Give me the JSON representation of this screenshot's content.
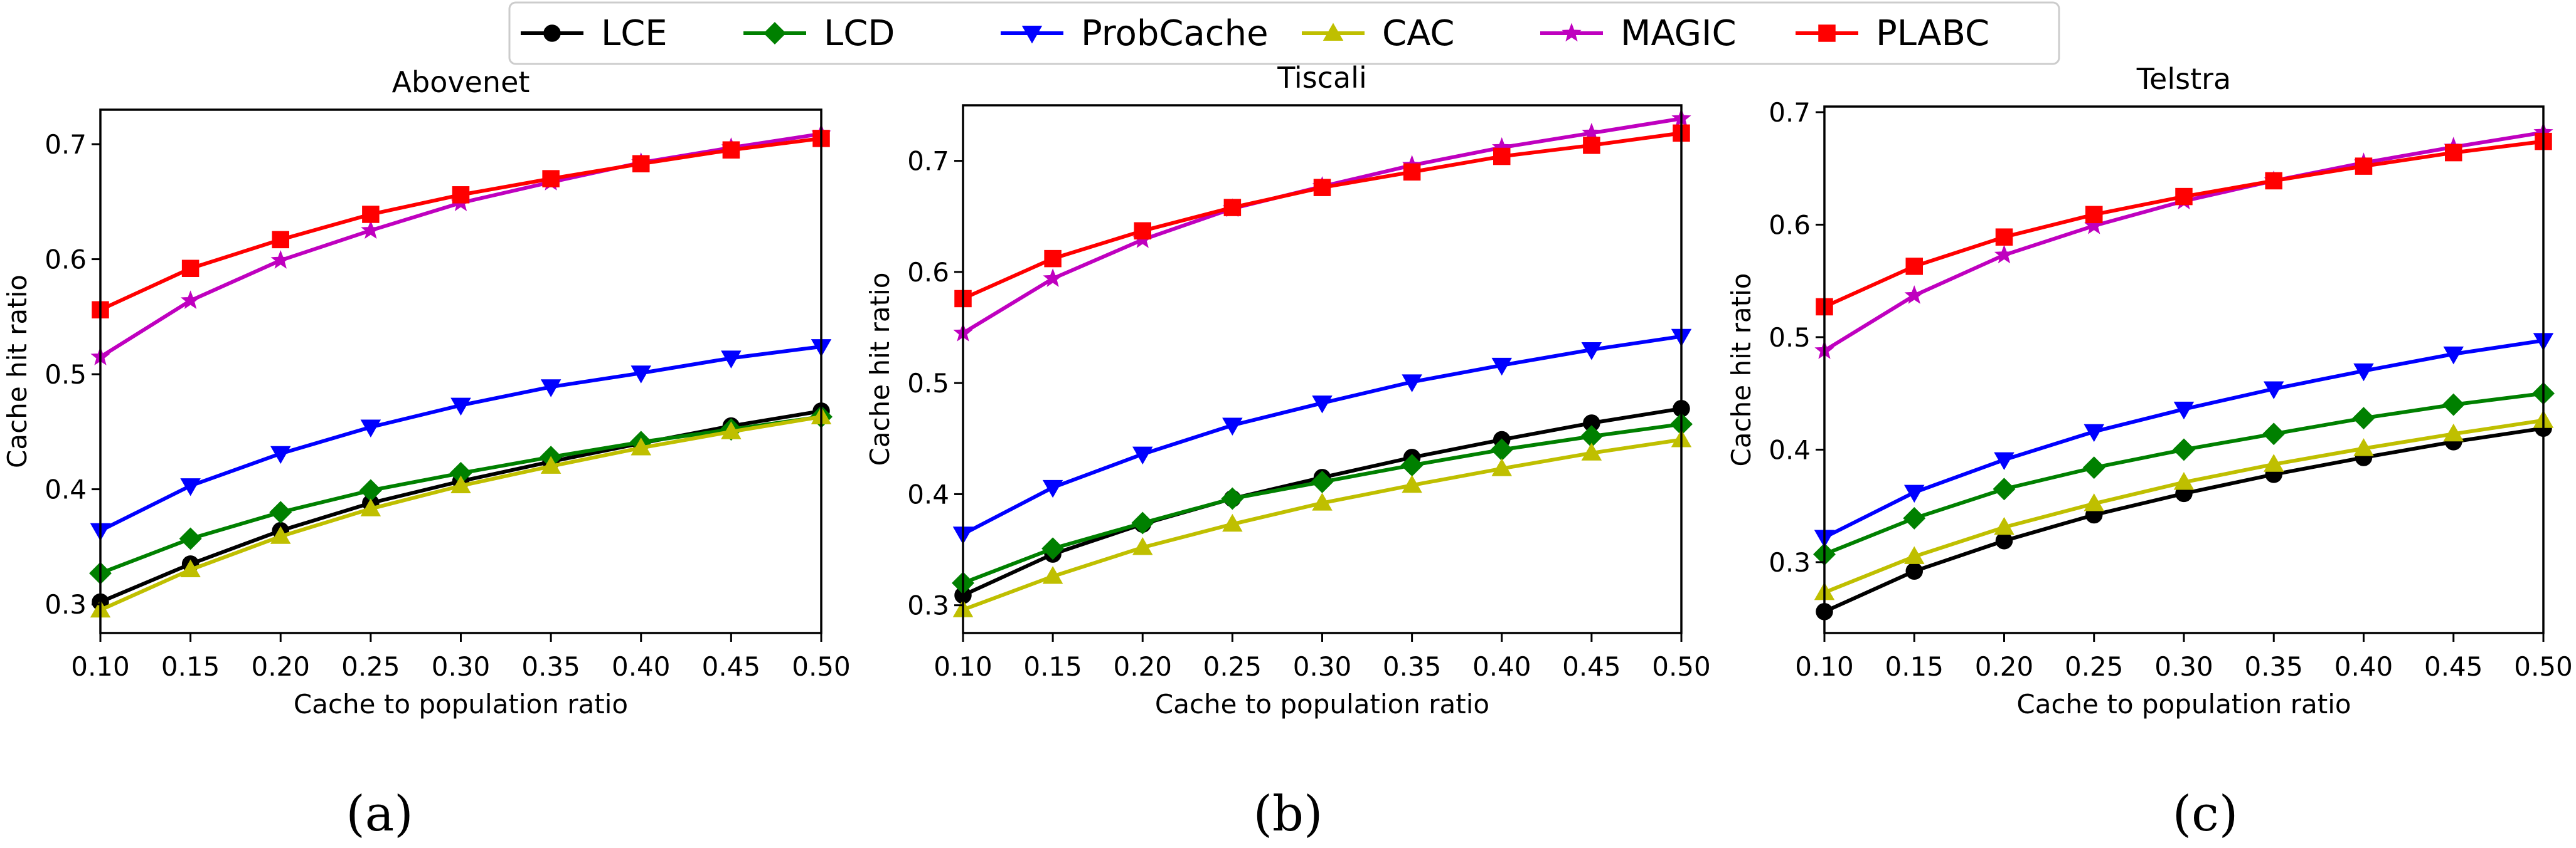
{
  "chart_data": {
    "type": "line",
    "shared_xlabel": "Cache to population ratio",
    "shared_ylabel": "Cache hit ratio",
    "x": [
      0.1,
      0.15,
      0.2,
      0.25,
      0.3,
      0.35,
      0.4,
      0.45,
      0.5
    ],
    "x_tick_labels": [
      "0.10",
      "0.15",
      "0.20",
      "0.25",
      "0.30",
      "0.35",
      "0.40",
      "0.45",
      "0.50"
    ],
    "xlim": [
      0.1,
      0.5
    ],
    "legend": {
      "placement": "top-center",
      "entries": [
        {
          "name": "LCE",
          "color": "#000000",
          "marker": "circle"
        },
        {
          "name": "LCD",
          "color": "#008000",
          "marker": "diamond"
        },
        {
          "name": "ProbCache",
          "color": "#0000ff",
          "marker": "triangle-down"
        },
        {
          "name": "CAC",
          "color": "#bfbf00",
          "marker": "triangle-up"
        },
        {
          "name": "MAGIC",
          "color": "#bf00bf",
          "marker": "star"
        },
        {
          "name": "PLABC",
          "color": "#ff0000",
          "marker": "square"
        }
      ]
    },
    "panels": [
      {
        "title": "Abovenet",
        "panel_label": "(a)",
        "ylim": [
          0.275,
          0.73
        ],
        "y_ticks": [
          0.3,
          0.4,
          0.5,
          0.6,
          0.7
        ],
        "y_tick_labels": [
          "0.3",
          "0.4",
          "0.5",
          "0.6",
          "0.7"
        ],
        "series": [
          {
            "name": "LCE",
            "values": [
              0.302,
              0.335,
              0.364,
              0.388,
              0.407,
              0.424,
              0.44,
              0.455,
              0.468
            ]
          },
          {
            "name": "LCD",
            "values": [
              0.327,
              0.357,
              0.38,
              0.399,
              0.414,
              0.428,
              0.441,
              0.452,
              0.463
            ]
          },
          {
            "name": "ProbCache",
            "values": [
              0.364,
              0.403,
              0.431,
              0.454,
              0.473,
              0.489,
              0.501,
              0.514,
              0.524
            ]
          },
          {
            "name": "CAC",
            "values": [
              0.295,
              0.33,
              0.359,
              0.383,
              0.403,
              0.42,
              0.436,
              0.45,
              0.463
            ]
          },
          {
            "name": "MAGIC",
            "values": [
              0.515,
              0.564,
              0.599,
              0.625,
              0.649,
              0.667,
              0.684,
              0.697,
              0.709
            ]
          },
          {
            "name": "PLABC",
            "values": [
              0.556,
              0.592,
              0.617,
              0.639,
              0.656,
              0.67,
              0.683,
              0.695,
              0.705
            ]
          }
        ]
      },
      {
        "title": "Tiscali",
        "panel_label": "(b)",
        "ylim": [
          0.275,
          0.75
        ],
        "y_ticks": [
          0.3,
          0.4,
          0.5,
          0.6,
          0.7
        ],
        "y_tick_labels": [
          "0.3",
          "0.4",
          "0.5",
          "0.6",
          "0.7"
        ],
        "series": [
          {
            "name": "LCE",
            "values": [
              0.309,
              0.346,
              0.373,
              0.396,
              0.415,
              0.433,
              0.449,
              0.464,
              0.477
            ]
          },
          {
            "name": "LCD",
            "values": [
              0.32,
              0.351,
              0.374,
              0.396,
              0.411,
              0.426,
              0.44,
              0.452,
              0.463
            ]
          },
          {
            "name": "ProbCache",
            "values": [
              0.364,
              0.406,
              0.436,
              0.462,
              0.482,
              0.501,
              0.516,
              0.53,
              0.542
            ]
          },
          {
            "name": "CAC",
            "values": [
              0.296,
              0.326,
              0.352,
              0.373,
              0.392,
              0.408,
              0.423,
              0.437,
              0.449
            ]
          },
          {
            "name": "MAGIC",
            "values": [
              0.545,
              0.594,
              0.629,
              0.657,
              0.677,
              0.696,
              0.712,
              0.725,
              0.738
            ]
          },
          {
            "name": "PLABC",
            "values": [
              0.576,
              0.612,
              0.637,
              0.658,
              0.676,
              0.69,
              0.704,
              0.714,
              0.725
            ]
          }
        ]
      },
      {
        "title": "Telstra",
        "panel_label": "(c)",
        "ylim": [
          0.237,
          0.705
        ],
        "y_ticks": [
          0.3,
          0.4,
          0.5,
          0.6,
          0.7
        ],
        "y_tick_labels": [
          "0.3",
          "0.4",
          "0.5",
          "0.6",
          "0.7"
        ],
        "series": [
          {
            "name": "LCE",
            "values": [
              0.256,
              0.292,
              0.319,
              0.342,
              0.361,
              0.378,
              0.393,
              0.407,
              0.419
            ]
          },
          {
            "name": "LCD",
            "values": [
              0.307,
              0.339,
              0.365,
              0.384,
              0.4,
              0.414,
              0.428,
              0.44,
              0.45
            ]
          },
          {
            "name": "ProbCache",
            "values": [
              0.322,
              0.362,
              0.391,
              0.416,
              0.436,
              0.454,
              0.47,
              0.485,
              0.497
            ]
          },
          {
            "name": "CAC",
            "values": [
              0.273,
              0.305,
              0.331,
              0.352,
              0.371,
              0.387,
              0.401,
              0.414,
              0.426
            ]
          },
          {
            "name": "MAGIC",
            "values": [
              0.488,
              0.537,
              0.573,
              0.599,
              0.621,
              0.639,
              0.655,
              0.669,
              0.682
            ]
          },
          {
            "name": "PLABC",
            "values": [
              0.527,
              0.563,
              0.589,
              0.609,
              0.625,
              0.639,
              0.652,
              0.664,
              0.674
            ]
          }
        ]
      }
    ]
  }
}
